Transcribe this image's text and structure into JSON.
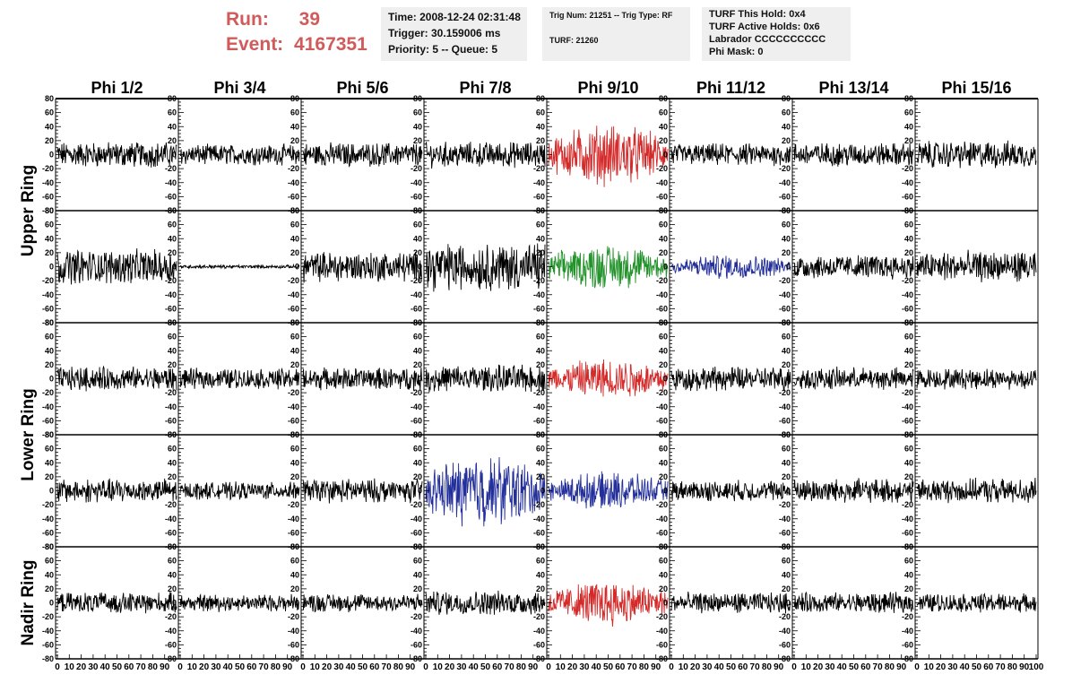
{
  "header": {
    "run_label": "Run:",
    "run_value": "39",
    "event_label": "Event:",
    "event_value": "4167351"
  },
  "info1": {
    "time": "Time: 2008-12-24 02:31:48",
    "trigger": "Trigger: 30.159006 ms",
    "priority": "Priority: 5 -- Queue: 5"
  },
  "info2": {
    "trig": "Trig Num: 21251 -- Trig Type: RF",
    "turf": "TURF: 21260"
  },
  "info3": {
    "hold": "TURF This Hold: 0x4",
    "active": "TURF Active Holds: 0x6",
    "labrador": "Labrador CCCCCCCCCC",
    "mask": "Phi Mask: 0"
  },
  "chart_data": {
    "type": "line",
    "columns": [
      "Phi 1/2",
      "Phi 3/4",
      "Phi 5/6",
      "Phi 7/8",
      "Phi 9/10",
      "Phi 11/12",
      "Phi 13/14",
      "Phi 15/16"
    ],
    "ring_labels": [
      {
        "label": "Upper Ring",
        "rows": [
          0,
          1
        ]
      },
      {
        "label": "Lower Ring",
        "rows": [
          2,
          3
        ]
      },
      {
        "label": "Nadir Ring",
        "rows": [
          4
        ]
      }
    ],
    "ylim": [
      -80,
      80
    ],
    "yticks": [
      80,
      60,
      40,
      20,
      0,
      -20,
      -40,
      -60,
      -80
    ],
    "xlim": [
      0,
      100
    ],
    "xticks": [
      0,
      10,
      20,
      30,
      40,
      50,
      60,
      70,
      80,
      90,
      100
    ],
    "colors": {
      "default": "#000000",
      "red": "#d42a2a",
      "green": "#22922a",
      "blue": "#232f9a"
    },
    "panels": [
      [
        {
          "amp": 15,
          "color": "default"
        },
        {
          "amp": 12,
          "color": "default"
        },
        {
          "amp": 14,
          "color": "default"
        },
        {
          "amp": 15,
          "color": "default"
        },
        {
          "amp": 30,
          "color": "red"
        },
        {
          "amp": 13,
          "color": "default"
        },
        {
          "amp": 14,
          "color": "default"
        },
        {
          "amp": 16,
          "color": "default"
        }
      ],
      [
        {
          "amp": 20,
          "color": "default"
        },
        {
          "amp": 2,
          "color": "default"
        },
        {
          "amp": 18,
          "color": "default"
        },
        {
          "amp": 28,
          "color": "default"
        },
        {
          "amp": 22,
          "color": "green"
        },
        {
          "amp": 12,
          "color": "blue"
        },
        {
          "amp": 14,
          "color": "default"
        },
        {
          "amp": 18,
          "color": "default"
        }
      ],
      [
        {
          "amp": 14,
          "color": "default"
        },
        {
          "amp": 12,
          "color": "default"
        },
        {
          "amp": 13,
          "color": "default"
        },
        {
          "amp": 16,
          "color": "default"
        },
        {
          "amp": 20,
          "color": "red"
        },
        {
          "amp": 14,
          "color": "default"
        },
        {
          "amp": 13,
          "color": "default"
        },
        {
          "amp": 12,
          "color": "default"
        }
      ],
      [
        {
          "amp": 14,
          "color": "default"
        },
        {
          "amp": 10,
          "color": "default"
        },
        {
          "amp": 14,
          "color": "default"
        },
        {
          "amp": 35,
          "color": "blue"
        },
        {
          "amp": 18,
          "color": "blue"
        },
        {
          "amp": 12,
          "color": "default"
        },
        {
          "amp": 14,
          "color": "default"
        },
        {
          "amp": 14,
          "color": "default"
        }
      ],
      [
        {
          "amp": 12,
          "color": "default"
        },
        {
          "amp": 10,
          "color": "default"
        },
        {
          "amp": 11,
          "color": "default"
        },
        {
          "amp": 14,
          "color": "default"
        },
        {
          "amp": 22,
          "color": "red"
        },
        {
          "amp": 12,
          "color": "default"
        },
        {
          "amp": 12,
          "color": "default"
        },
        {
          "amp": 11,
          "color": "default"
        }
      ]
    ]
  }
}
